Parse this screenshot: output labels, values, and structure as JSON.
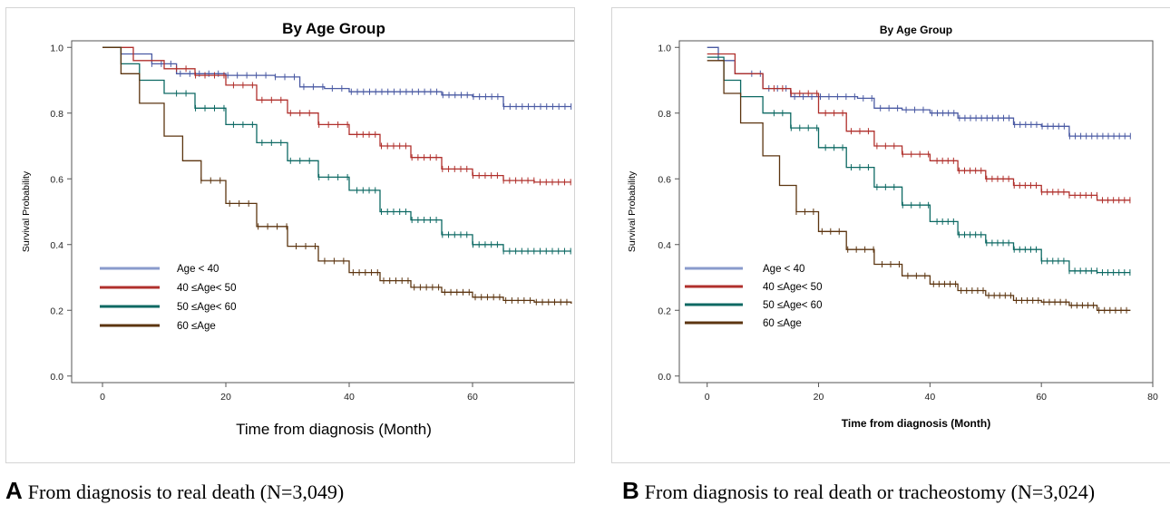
{
  "chart_data": [
    {
      "type": "line",
      "title": "By Age Group",
      "xlabel": "Time from diagnosis (Month)",
      "ylabel": "Survival Probability",
      "xlim": [
        -5,
        80
      ],
      "ylim": [
        -0.02,
        1.02
      ],
      "xticks": [
        0,
        20,
        40,
        60,
        80
      ],
      "yticks": [
        0.0,
        0.2,
        0.4,
        0.6,
        0.8,
        1.0
      ],
      "legend_position": "lower-left",
      "series": [
        {
          "name": "Age < 40",
          "color": "#4a5aa3",
          "legend_color": "#8a9bcc",
          "points": [
            [
              0,
              1.0
            ],
            [
              3,
              0.98
            ],
            [
              8,
              0.95
            ],
            [
              12,
              0.92
            ],
            [
              20,
              0.915
            ],
            [
              28,
              0.91
            ],
            [
              32,
              0.88
            ],
            [
              36,
              0.875
            ],
            [
              40,
              0.865
            ],
            [
              48,
              0.865
            ],
            [
              55,
              0.855
            ],
            [
              60,
              0.85
            ],
            [
              64,
              0.85
            ],
            [
              65,
              0.82
            ],
            [
              76,
              0.82
            ]
          ]
        },
        {
          "name": "40 ≤Age< 50",
          "color": "#b0302c",
          "legend_color": "#b0302c",
          "points": [
            [
              0,
              1.0
            ],
            [
              5,
              0.96
            ],
            [
              10,
              0.935
            ],
            [
              15,
              0.915
            ],
            [
              20,
              0.885
            ],
            [
              25,
              0.84
            ],
            [
              30,
              0.8
            ],
            [
              35,
              0.765
            ],
            [
              40,
              0.735
            ],
            [
              45,
              0.7
            ],
            [
              50,
              0.665
            ],
            [
              55,
              0.63
            ],
            [
              60,
              0.61
            ],
            [
              65,
              0.595
            ],
            [
              70,
              0.59
            ],
            [
              76,
              0.59
            ]
          ]
        },
        {
          "name": "50 ≤Age< 60",
          "color": "#0d6963",
          "legend_color": "#0d6963",
          "points": [
            [
              0,
              1.0
            ],
            [
              3,
              0.95
            ],
            [
              6,
              0.9
            ],
            [
              10,
              0.86
            ],
            [
              15,
              0.815
            ],
            [
              20,
              0.765
            ],
            [
              25,
              0.71
            ],
            [
              30,
              0.655
            ],
            [
              35,
              0.605
            ],
            [
              40,
              0.565
            ],
            [
              45,
              0.5
            ],
            [
              50,
              0.475
            ],
            [
              55,
              0.43
            ],
            [
              60,
              0.4
            ],
            [
              65,
              0.38
            ],
            [
              70,
              0.38
            ],
            [
              76,
              0.38
            ]
          ]
        },
        {
          "name": "60 ≤Age",
          "color": "#5c3510",
          "legend_color": "#5c3510",
          "points": [
            [
              0,
              1.0
            ],
            [
              3,
              0.92
            ],
            [
              6,
              0.83
            ],
            [
              10,
              0.73
            ],
            [
              13,
              0.655
            ],
            [
              16,
              0.595
            ],
            [
              20,
              0.525
            ],
            [
              25,
              0.455
            ],
            [
              30,
              0.395
            ],
            [
              35,
              0.35
            ],
            [
              40,
              0.315
            ],
            [
              45,
              0.29
            ],
            [
              50,
              0.27
            ],
            [
              55,
              0.255
            ],
            [
              60,
              0.24
            ],
            [
              65,
              0.23
            ],
            [
              70,
              0.225
            ],
            [
              76,
              0.22
            ]
          ]
        }
      ]
    },
    {
      "type": "line",
      "title": "By Age Group",
      "xlabel": "Time from diagnosis (Month)",
      "ylabel": "Survival Probability",
      "xlim": [
        -5,
        80
      ],
      "ylim": [
        -0.02,
        1.02
      ],
      "xticks": [
        0,
        20,
        40,
        60,
        80
      ],
      "yticks": [
        0.0,
        0.2,
        0.4,
        0.6,
        0.8,
        1.0
      ],
      "legend_position": "lower-left",
      "series": [
        {
          "name": "Age < 40",
          "color": "#4a5aa3",
          "legend_color": "#8a9bcc",
          "points": [
            [
              0,
              1.0
            ],
            [
              2,
              0.96
            ],
            [
              5,
              0.92
            ],
            [
              10,
              0.875
            ],
            [
              15,
              0.85
            ],
            [
              20,
              0.85
            ],
            [
              27,
              0.845
            ],
            [
              30,
              0.815
            ],
            [
              35,
              0.81
            ],
            [
              40,
              0.8
            ],
            [
              45,
              0.785
            ],
            [
              50,
              0.785
            ],
            [
              55,
              0.765
            ],
            [
              60,
              0.76
            ],
            [
              64,
              0.76
            ],
            [
              65,
              0.73
            ],
            [
              76,
              0.73
            ]
          ]
        },
        {
          "name": "40 ≤Age< 50",
          "color": "#b0302c",
          "legend_color": "#b0302c",
          "points": [
            [
              0,
              0.98
            ],
            [
              5,
              0.92
            ],
            [
              10,
              0.875
            ],
            [
              15,
              0.86
            ],
            [
              20,
              0.8
            ],
            [
              25,
              0.745
            ],
            [
              30,
              0.7
            ],
            [
              35,
              0.675
            ],
            [
              40,
              0.655
            ],
            [
              45,
              0.625
            ],
            [
              50,
              0.6
            ],
            [
              55,
              0.58
            ],
            [
              60,
              0.56
            ],
            [
              65,
              0.55
            ],
            [
              70,
              0.535
            ],
            [
              76,
              0.535
            ]
          ]
        },
        {
          "name": "50 ≤Age< 60",
          "color": "#0d6963",
          "legend_color": "#0d6963",
          "points": [
            [
              0,
              0.97
            ],
            [
              3,
              0.9
            ],
            [
              6,
              0.85
            ],
            [
              10,
              0.8
            ],
            [
              15,
              0.755
            ],
            [
              20,
              0.695
            ],
            [
              25,
              0.635
            ],
            [
              30,
              0.575
            ],
            [
              35,
              0.52
            ],
            [
              40,
              0.47
            ],
            [
              45,
              0.43
            ],
            [
              50,
              0.405
            ],
            [
              55,
              0.385
            ],
            [
              60,
              0.35
            ],
            [
              65,
              0.32
            ],
            [
              70,
              0.315
            ],
            [
              76,
              0.315
            ]
          ]
        },
        {
          "name": "60 ≤Age",
          "color": "#5c3510",
          "legend_color": "#5c3510",
          "points": [
            [
              0,
              0.96
            ],
            [
              3,
              0.86
            ],
            [
              6,
              0.77
            ],
            [
              10,
              0.67
            ],
            [
              13,
              0.58
            ],
            [
              16,
              0.5
            ],
            [
              20,
              0.44
            ],
            [
              25,
              0.385
            ],
            [
              30,
              0.34
            ],
            [
              35,
              0.305
            ],
            [
              40,
              0.28
            ],
            [
              45,
              0.26
            ],
            [
              50,
              0.245
            ],
            [
              55,
              0.23
            ],
            [
              60,
              0.225
            ],
            [
              65,
              0.215
            ],
            [
              70,
              0.2
            ],
            [
              76,
              0.2
            ]
          ]
        }
      ]
    }
  ],
  "captions": [
    {
      "letter": "A",
      "text": "From diagnosis to real death (N=3,049)"
    },
    {
      "letter": "B",
      "text": "From diagnosis to real death or tracheostomy (N=3,024)"
    }
  ]
}
